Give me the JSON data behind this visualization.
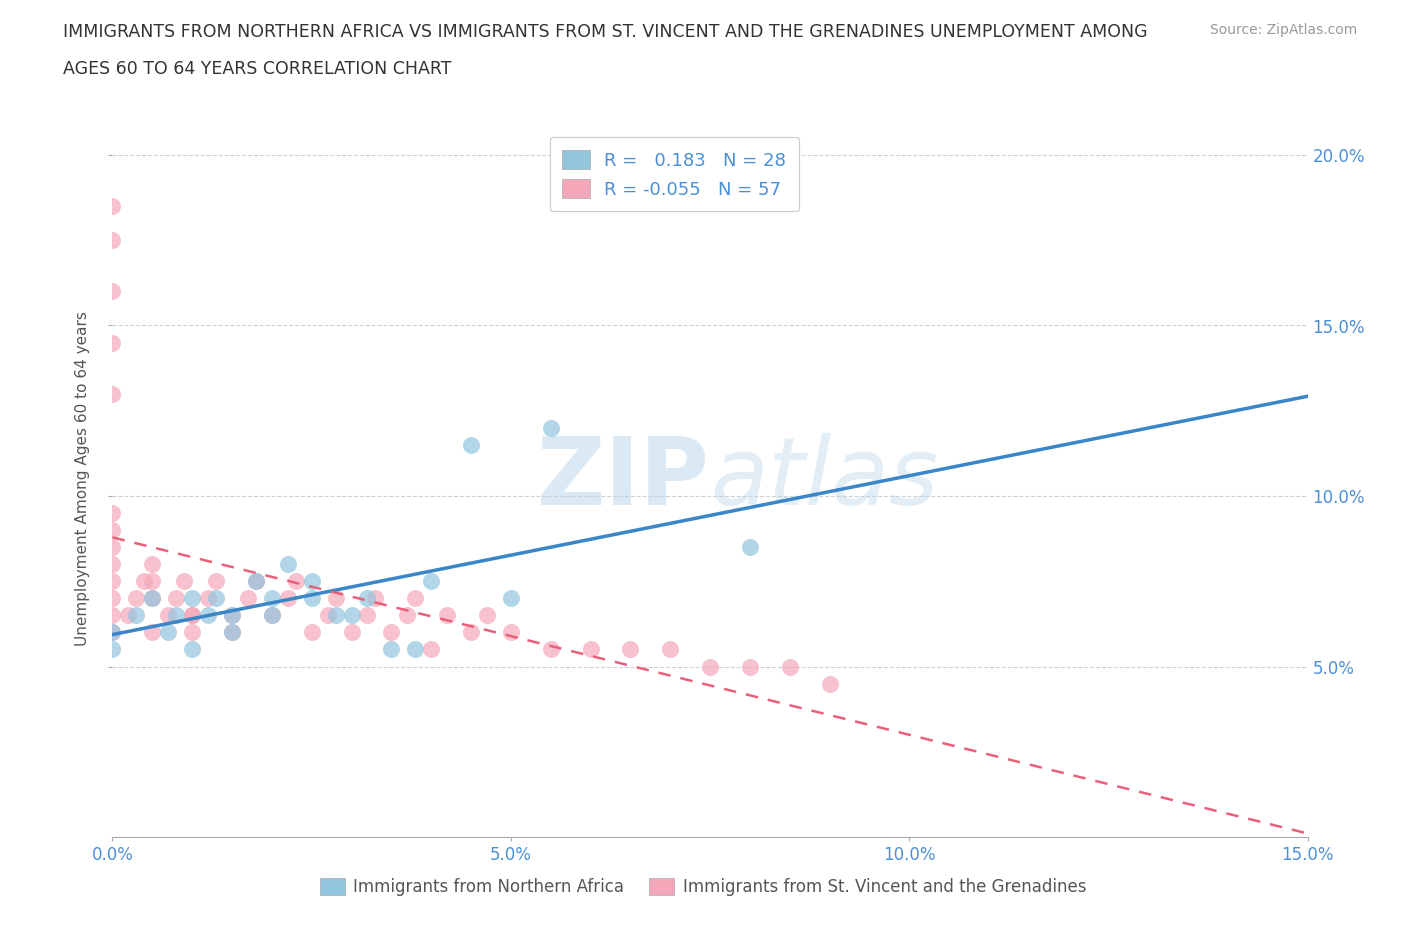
{
  "title_line1": "IMMIGRANTS FROM NORTHERN AFRICA VS IMMIGRANTS FROM ST. VINCENT AND THE GRENADINES UNEMPLOYMENT AMONG",
  "title_line2": "AGES 60 TO 64 YEARS CORRELATION CHART",
  "source": "Source: ZipAtlas.com",
  "ylabel": "Unemployment Among Ages 60 to 64 years",
  "xlim": [
    0.0,
    0.15
  ],
  "ylim": [
    0.0,
    0.21
  ],
  "yticks": [
    0.05,
    0.1,
    0.15,
    0.2
  ],
  "ytick_labels": [
    "5.0%",
    "10.0%",
    "15.0%",
    "20.0%"
  ],
  "xticks": [
    0.0,
    0.05,
    0.1,
    0.15
  ],
  "xtick_labels": [
    "0.0%",
    "5.0%",
    "10.0%",
    "15.0%"
  ],
  "legend_v1": "0.183",
  "legend_n1": "N = 28",
  "legend_v2": "-0.055",
  "legend_n2": "N = 57",
  "color_blue": "#92c5de",
  "color_pink": "#f4a7b9",
  "line_blue": "#3a86c8",
  "line_pink": "#e8607a",
  "background": "#ffffff",
  "grid_color": "#d0d0d0",
  "scatter_blue_x": [
    0.0,
    0.0,
    0.003,
    0.005,
    0.007,
    0.008,
    0.01,
    0.01,
    0.012,
    0.013,
    0.015,
    0.015,
    0.018,
    0.02,
    0.02,
    0.022,
    0.025,
    0.025,
    0.028,
    0.03,
    0.032,
    0.035,
    0.038,
    0.04,
    0.045,
    0.05,
    0.055,
    0.08
  ],
  "scatter_blue_y": [
    0.055,
    0.06,
    0.065,
    0.07,
    0.06,
    0.065,
    0.055,
    0.07,
    0.065,
    0.07,
    0.06,
    0.065,
    0.075,
    0.065,
    0.07,
    0.08,
    0.07,
    0.075,
    0.065,
    0.065,
    0.07,
    0.055,
    0.055,
    0.075,
    0.115,
    0.07,
    0.12,
    0.085
  ],
  "scatter_pink_x": [
    0.0,
    0.0,
    0.0,
    0.0,
    0.0,
    0.0,
    0.0,
    0.0,
    0.0,
    0.0,
    0.0,
    0.0,
    0.0,
    0.002,
    0.003,
    0.004,
    0.005,
    0.005,
    0.005,
    0.007,
    0.008,
    0.009,
    0.01,
    0.01,
    0.012,
    0.013,
    0.015,
    0.015,
    0.017,
    0.018,
    0.02,
    0.022,
    0.023,
    0.025,
    0.027,
    0.028,
    0.03,
    0.032,
    0.033,
    0.035,
    0.037,
    0.038,
    0.04,
    0.042,
    0.045,
    0.047,
    0.05,
    0.055,
    0.06,
    0.065,
    0.07,
    0.075,
    0.08,
    0.085,
    0.09,
    0.01,
    0.005
  ],
  "scatter_pink_y": [
    0.06,
    0.065,
    0.07,
    0.075,
    0.08,
    0.085,
    0.09,
    0.095,
    0.185,
    0.175,
    0.16,
    0.145,
    0.13,
    0.065,
    0.07,
    0.075,
    0.06,
    0.07,
    0.075,
    0.065,
    0.07,
    0.075,
    0.06,
    0.065,
    0.07,
    0.075,
    0.06,
    0.065,
    0.07,
    0.075,
    0.065,
    0.07,
    0.075,
    0.06,
    0.065,
    0.07,
    0.06,
    0.065,
    0.07,
    0.06,
    0.065,
    0.07,
    0.055,
    0.065,
    0.06,
    0.065,
    0.06,
    0.055,
    0.055,
    0.055,
    0.055,
    0.05,
    0.05,
    0.05,
    0.045,
    0.065,
    0.08
  ],
  "watermark_zip": "ZIP",
  "watermark_atlas": "atlas",
  "legend_label_blue": "Immigrants from Northern Africa",
  "legend_label_pink": "Immigrants from St. Vincent and the Grenadines"
}
